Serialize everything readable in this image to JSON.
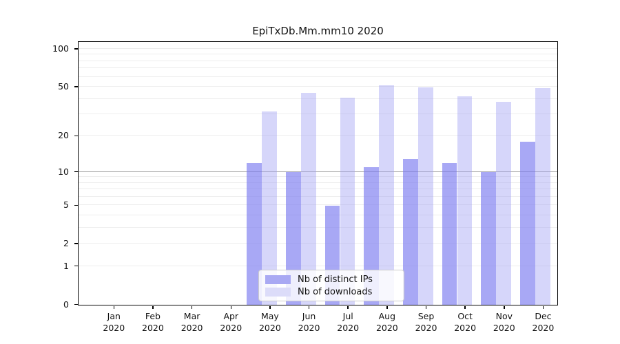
{
  "title": "EpiTxDb.Mm.mm10 2020",
  "legend": {
    "items": [
      {
        "label": "Nb of distinct IPs",
        "color_key": "distinct_ips"
      },
      {
        "label": "Nb of downloads",
        "color_key": "downloads"
      }
    ]
  },
  "colors": {
    "distinct_ips_bar": "rgba(122,122,240,0.65)",
    "downloads_bar": "rgba(158,158,242,0.42)",
    "distinct_ips_legend": "#a9a9f3",
    "downloads_legend": "#dcdcf9",
    "grid_minor": "#ededed",
    "grid_major": "#b5b5b5",
    "axis": "#000000",
    "text": "#111111"
  },
  "chart_data": {
    "type": "bar",
    "title": "EpiTxDb.Mm.mm10 2020",
    "categories": [
      "Jan",
      "Feb",
      "Mar",
      "Apr",
      "May",
      "Jun",
      "Jul",
      "Aug",
      "Sep",
      "Oct",
      "Nov",
      "Dec"
    ],
    "year": "2020",
    "series": [
      {
        "name": "Nb of distinct IPs",
        "values": [
          0,
          0,
          0,
          0,
          12,
          10,
          5,
          11,
          13,
          12,
          10,
          18
        ]
      },
      {
        "name": "Nb of downloads",
        "values": [
          0,
          0,
          0,
          0,
          32,
          45,
          41,
          52,
          50,
          42,
          38,
          49
        ]
      }
    ],
    "xlabel": "",
    "ylabel": "",
    "yscale": "log1p",
    "y_ticks": [
      0,
      1,
      2,
      5,
      10,
      20,
      50,
      100
    ],
    "ylim": [
      0,
      115
    ],
    "grid": true,
    "grid_minor_values": [
      2,
      3,
      4,
      5,
      6,
      7,
      8,
      9,
      20,
      30,
      40,
      50,
      60,
      70,
      80,
      90,
      1,
      100
    ],
    "grid_major_values": [
      10
    ],
    "legend_position": "lower center"
  }
}
